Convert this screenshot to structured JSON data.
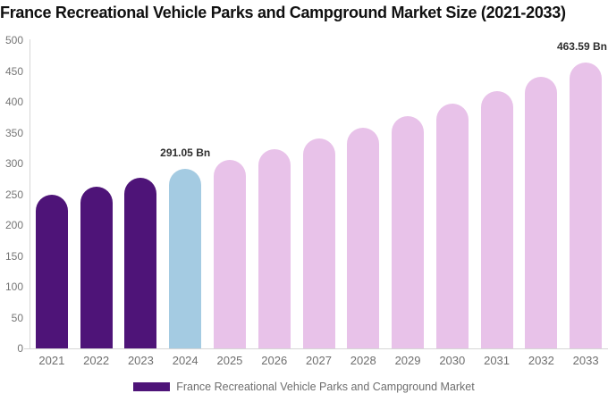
{
  "chart_data": {
    "type": "bar",
    "title": "France Recreational Vehicle Parks and Campground Market Size (2021-2033)",
    "categories": [
      "2021",
      "2022",
      "2023",
      "2024",
      "2025",
      "2026",
      "2027",
      "2028",
      "2029",
      "2030",
      "2031",
      "2032",
      "2033"
    ],
    "values": [
      249.2,
      262.4,
      276.4,
      291.05,
      306.5,
      322.8,
      339.9,
      358,
      377,
      396.9,
      418,
      440.2,
      463.59
    ],
    "unit": "Bn",
    "bar_colors": [
      "#4E1478",
      "#4E1478",
      "#4E1478",
      "#A4CBE2",
      "#E8C2E9",
      "#E8C2E9",
      "#E8C2E9",
      "#E8C2E9",
      "#E8C2E9",
      "#E8C2E9",
      "#E8C2E9",
      "#E8C2E9",
      "#E8C2E9"
    ],
    "palette": {
      "historical": "#4E1478",
      "base_year": "#A4CBE2",
      "forecast": "#E8C2E9"
    },
    "value_labels": [
      {
        "category": "2024",
        "text": "291.05 Bn"
      },
      {
        "category": "2033",
        "text": "463.59 Bn"
      }
    ],
    "ylim": [
      0,
      500
    ],
    "yticks": [
      0,
      50,
      100,
      150,
      200,
      250,
      300,
      350,
      400,
      450,
      500
    ],
    "grid": "off",
    "legend_position": "bottom",
    "legend": [
      {
        "label": "France Recreational Vehicle Parks and Campground Market",
        "color": "#4E1478"
      }
    ],
    "axis_color": "#d6d6d6",
    "tick_label_color": "#757575",
    "title_color": "#101010",
    "value_label_color": "#2e2e2e"
  }
}
